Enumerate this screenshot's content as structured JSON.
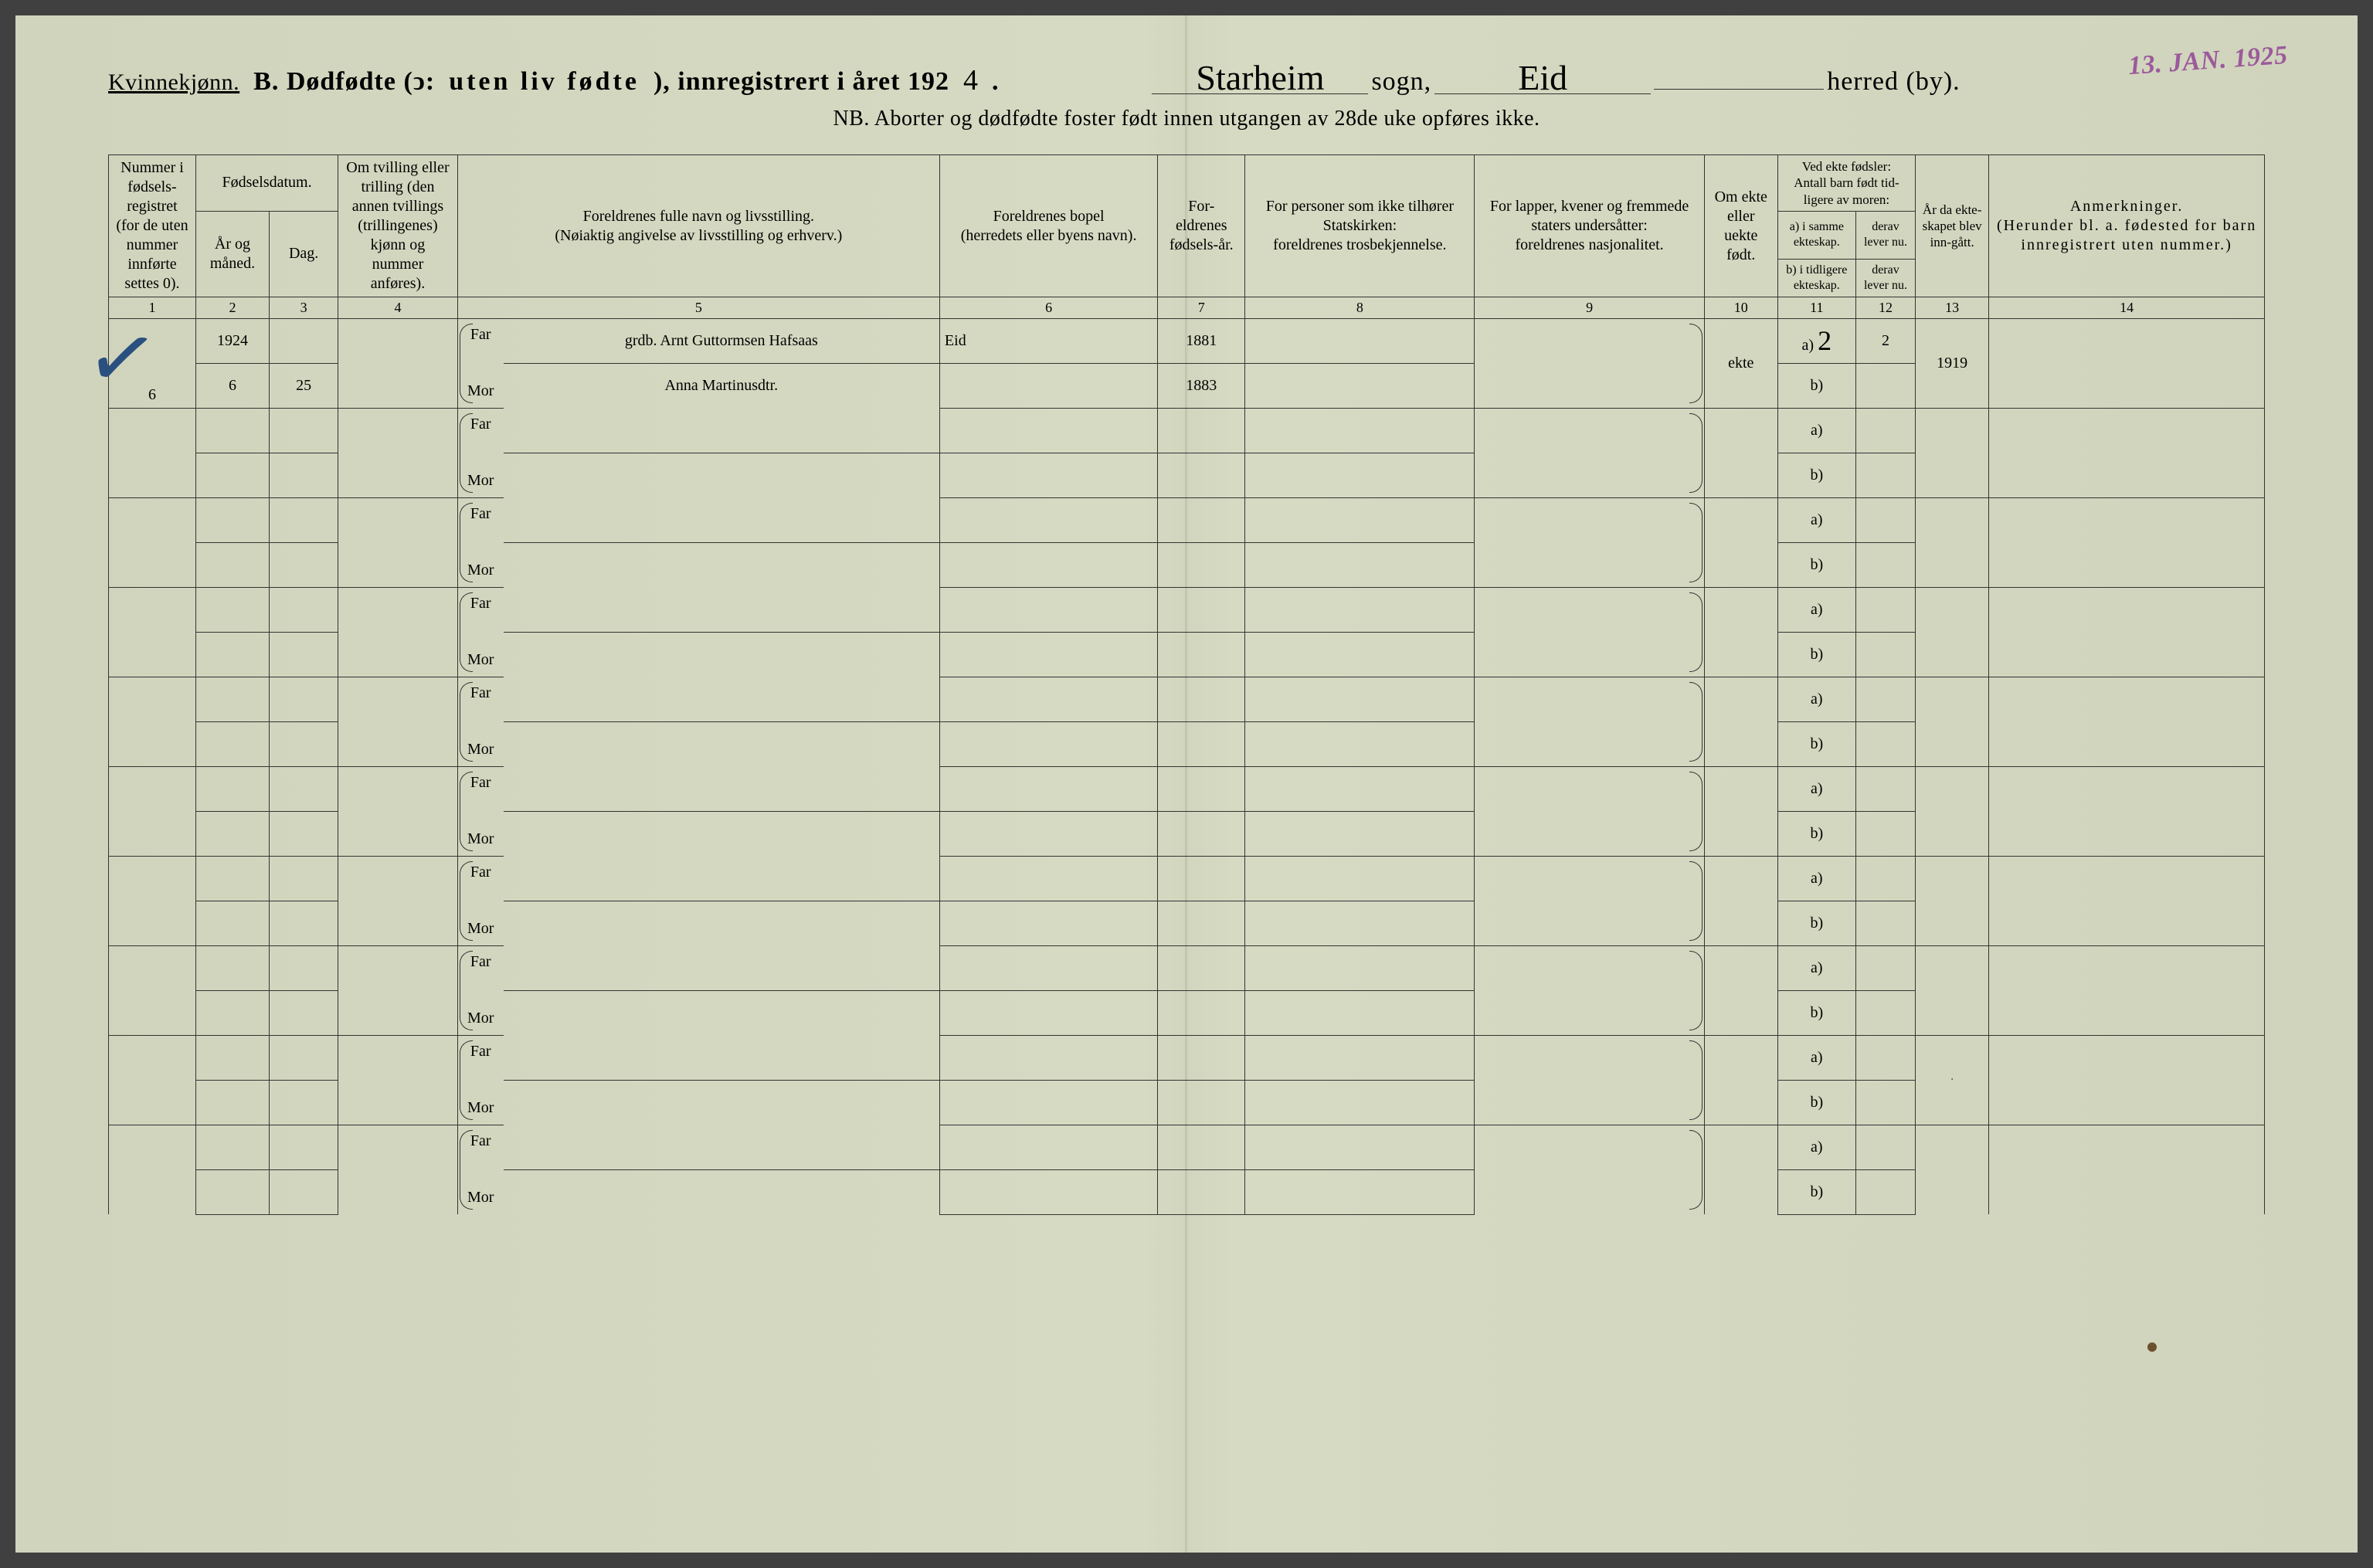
{
  "header": {
    "gender": "Kvinnekjønn.",
    "title_prefix": "B.  Dødfødte (ↄ:",
    "title_spaced": "uten liv fødte",
    "title_suffix": "), innregistrert i året 192",
    "year_digit": "4",
    "period": ".",
    "parish_hand": "Starheim",
    "sogn_label": "sogn,",
    "herred_hand": "Eid",
    "herred_label": "herred (by).",
    "stamp": "13. JAN. 1925",
    "nb_line": "NB.  Aborter og dødfødte foster født innen utgangen av 28de uke opføres ikke."
  },
  "columns": {
    "c1": "Nummer i fødsels-registret (for de uten nummer innførte settes 0).",
    "c2_top": "Fødselsdatum.",
    "c2a": "År og måned.",
    "c2b": "Dag.",
    "c3": "Om tvilling eller trilling (den annen tvillings (trillingenes) kjønn og nummer anføres).",
    "c5": "Foreldrenes fulle navn og livsstilling.\n(Nøiaktig angivelse av livsstilling og erhverv.)",
    "c6": "Foreldrenes bopel\n(herredets eller byens navn).",
    "c7": "For-eldrenes fødsels-år.",
    "c8": "For personer som ikke tilhører Statskirken:\nforeldrenes trosbekjennelse.",
    "c9": "For lapper, kvener og fremmede staters undersåtter:\nforeldrenes nasjonalitet.",
    "c10": "Om ekte eller uekte født.",
    "c11_top": "Ved ekte fødsler:\nAntall barn født tid-ligere av moren:",
    "c11a": "a) i samme ekteskap.",
    "c11b": "b) i tidligere ekteskap.",
    "c12a": "derav lever nu.",
    "c12b": "derav lever nu.",
    "c13": "År da ekte-skapet blev inn-gått.",
    "c14": "Anmerkninger.\n(Herunder bl. a. fødested for barn innregistrert uten nummer.)"
  },
  "colnums": {
    "n1": "1",
    "n2": "2",
    "n3": "3",
    "n4": "4",
    "n5": "5",
    "n6": "6",
    "n7": "7",
    "n8": "8",
    "n9": "9",
    "n10": "10",
    "n11": "11",
    "n12": "12",
    "n13": "13",
    "n14": "14"
  },
  "labels": {
    "far": "Far",
    "mor": "Mor",
    "a": "a)",
    "b": "b)"
  },
  "entry": {
    "num": "6",
    "year": "1924",
    "month": "6",
    "day": "25",
    "far_name": "grdb. Arnt Guttormsen Hafsaas",
    "mor_name": "Anna Martinusdtr.",
    "bopel": "Eid",
    "far_year": "1881",
    "mor_year": "1883",
    "ekte": "ekte",
    "a_val": "2",
    "a_lever": "2",
    "marriage_year": "1919"
  },
  "style": {
    "paper_color": "#d4d8c0",
    "ink_color": "#1e1e1e",
    "stamp_color": "#9b5a9b",
    "check_color": "#2a5080",
    "rule_color": "#333333",
    "header_fontsize": 34,
    "cell_fontsize": 20,
    "hand_fontsize": 38
  },
  "blank_row_count": 9
}
